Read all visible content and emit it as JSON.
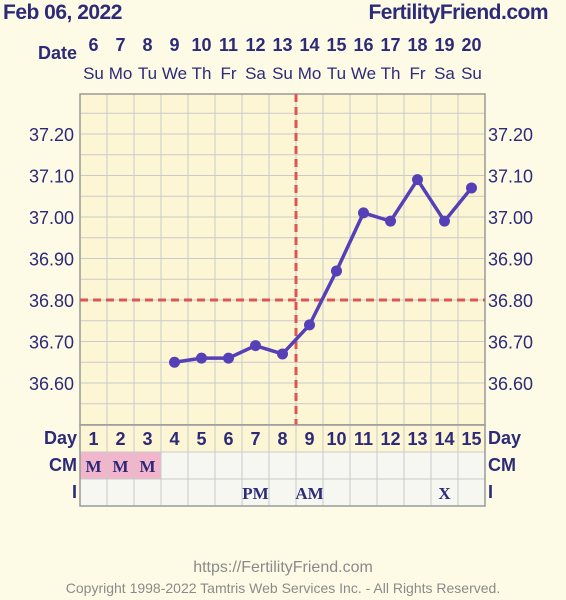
{
  "header": {
    "date": "Feb 06, 2022",
    "site": "FertilityFriend.com"
  },
  "footer": {
    "url": "https://FertilityFriend.com",
    "copyright": "Copyright 1998-2022 Tamtris Web Services Inc. - All Rights Reserved."
  },
  "colors": {
    "line": "#5540b8",
    "coverline": "#dd5555",
    "text": "#2d2a78",
    "grid": "#c9c9c9",
    "grid_bg": "#fcf6d4",
    "row_bg": "#f7f7f2",
    "menses_bg": "#f2b6cc"
  },
  "chart_data": {
    "type": "line",
    "x_label": "Date",
    "dates": [
      "6",
      "7",
      "8",
      "9",
      "10",
      "11",
      "12",
      "13",
      "14",
      "15",
      "16",
      "17",
      "18",
      "19",
      "20"
    ],
    "weekdays": [
      "Su",
      "Mo",
      "Tu",
      "We",
      "Th",
      "Fr",
      "Sa",
      "Su",
      "Mo",
      "Tu",
      "We",
      "Th",
      "Fr",
      "Sa",
      "Su"
    ],
    "cycle_days": [
      "1",
      "2",
      "3",
      "4",
      "5",
      "6",
      "7",
      "8",
      "9",
      "10",
      "11",
      "12",
      "13",
      "14",
      "15"
    ],
    "temperatures": [
      null,
      null,
      null,
      36.65,
      36.66,
      36.66,
      36.69,
      36.67,
      36.74,
      36.87,
      37.01,
      36.99,
      37.09,
      36.99,
      37.07
    ],
    "y_ticks": [
      "36.60",
      "36.70",
      "36.80",
      "36.90",
      "37.00",
      "37.10",
      "37.20"
    ],
    "ylim": [
      36.5,
      37.3
    ],
    "coverline": 36.8,
    "ovulation_day": 9,
    "grid": true,
    "rows": [
      {
        "label": "Day",
        "key": "cycle_days"
      },
      {
        "label": "CM",
        "values": [
          "M",
          "M",
          "M",
          "",
          "",
          "",
          "",
          "",
          "",
          "",
          "",
          "",
          "",
          "",
          ""
        ]
      },
      {
        "label": "I",
        "values": [
          "",
          "",
          "",
          "",
          "",
          "",
          "PM",
          "",
          "AM",
          "",
          "",
          "",
          "",
          "X",
          ""
        ]
      }
    ]
  }
}
